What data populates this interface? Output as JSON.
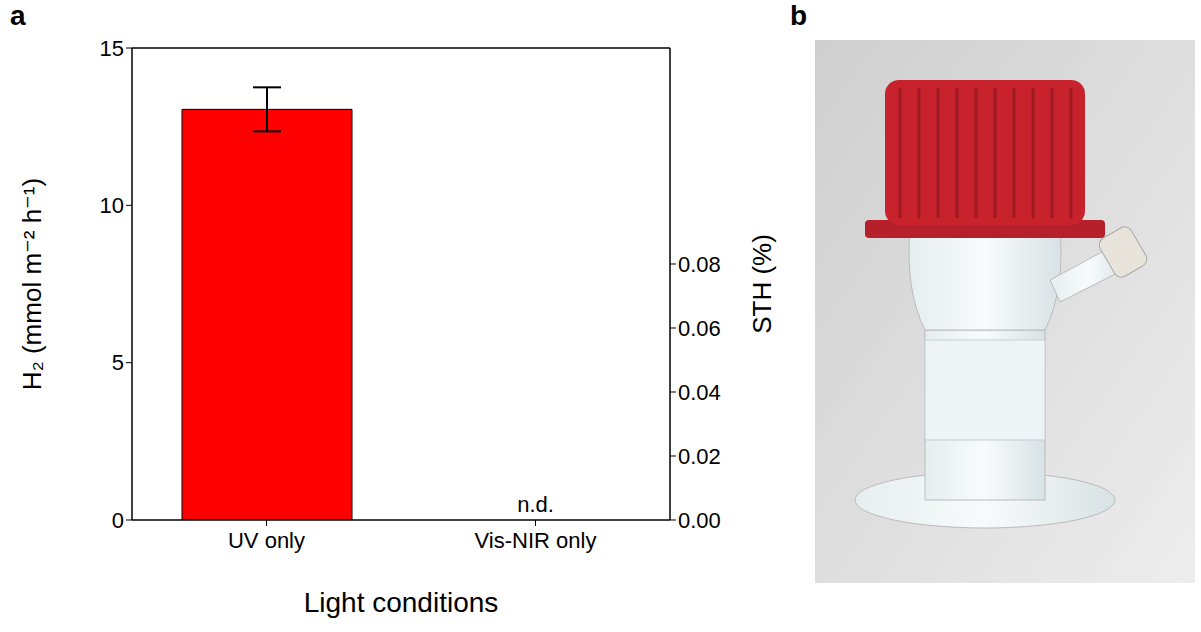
{
  "chart_data": {
    "type": "bar",
    "panel": "a",
    "categories": [
      "UV only",
      "Vis-NIR only"
    ],
    "values": [
      13.05,
      null
    ],
    "error": [
      0.7,
      null
    ],
    "color": "#ff0000",
    "xlabel": "Light conditions",
    "ylabel": "H₂ (mmol m⁻² h⁻¹)",
    "y2label": "STH (%)",
    "ylim": [
      0,
      15
    ],
    "yticks": [
      0,
      5,
      10,
      15
    ],
    "y2lim": [
      0,
      0.1475
    ],
    "y2ticks": [
      {
        "value": 0,
        "label": "0.00"
      },
      {
        "value": 0.02,
        "label": "0.02"
      },
      {
        "value": 0.04,
        "label": "0.04"
      },
      {
        "value": 0.06,
        "label": "0.06"
      },
      {
        "value": 0.08,
        "label": "0.08"
      }
    ],
    "annotations": [
      {
        "category": "Vis-NIR only",
        "text": "n.d."
      }
    ]
  },
  "photo": {
    "panel": "b"
  }
}
